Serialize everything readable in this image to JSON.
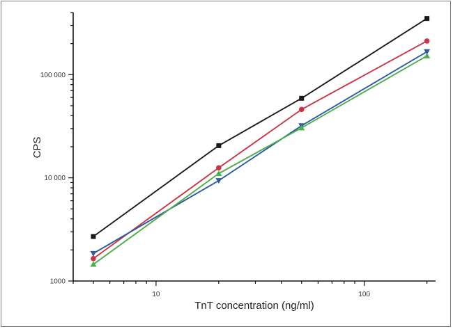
{
  "chart_data": {
    "type": "line",
    "title": "",
    "xlabel": "TnT concentration (ng/ml)",
    "ylabel": "CPS",
    "x_scale": "log",
    "y_scale": "log",
    "xlim": [
      4.0,
      220
    ],
    "ylim": [
      1000,
      400000
    ],
    "x_ticks": [
      {
        "value": 10,
        "label": "10"
      },
      {
        "value": 100,
        "label": "100"
      }
    ],
    "y_ticks": [
      {
        "value": 1000,
        "label": "1000"
      },
      {
        "value": 10000,
        "label": "10 000"
      },
      {
        "value": 100000,
        "label": "100 000"
      }
    ],
    "x": [
      5,
      20,
      50,
      200
    ],
    "series": [
      {
        "color": "#1a1a1a",
        "marker": "square",
        "values": [
          2700,
          20500,
          59000,
          350000
        ]
      },
      {
        "color": "#cc3344",
        "marker": "circle",
        "values": [
          1650,
          12500,
          46000,
          212000
        ]
      },
      {
        "color": "#2f5aa0",
        "marker": "triangle-down",
        "values": [
          1850,
          9400,
          32000,
          167000
        ]
      },
      {
        "color": "#49b04a",
        "marker": "triangle-up",
        "values": [
          1450,
          11000,
          30500,
          152000
        ]
      }
    ],
    "grid": false,
    "legend": "none"
  }
}
